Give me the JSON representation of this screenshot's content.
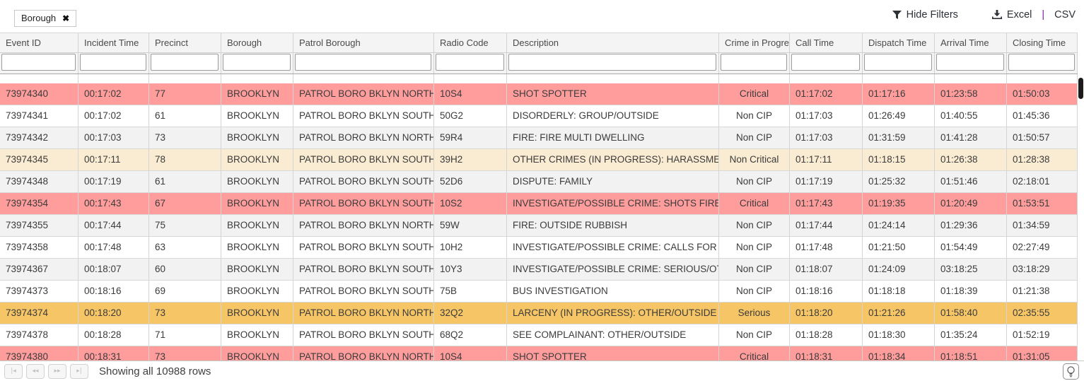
{
  "filter_chip": {
    "label": "Borough",
    "remove_icon": "✖"
  },
  "toolbar": {
    "hide_filters_label": "Hide Filters",
    "excel_label": "Excel",
    "separator": "|",
    "csv_label": "CSV"
  },
  "table": {
    "columns": [
      "Event ID",
      "Incident Time",
      "Precinct",
      "Borough",
      "Patrol Borough",
      "Radio Code",
      "Description",
      "Crime in Progre...",
      "Call Time",
      "Dispatch Time",
      "Arrival Time",
      "Closing Time"
    ],
    "rows": [
      {
        "bg": "critical",
        "cells": [
          "73974340",
          "00:17:02",
          "77",
          "BROOKLYN",
          "PATROL BORO BKLYN NORTH",
          "10S4",
          "SHOT SPOTTER",
          "Critical",
          "01:17:02",
          "01:17:16",
          "01:23:58",
          "01:50:03"
        ]
      },
      {
        "bg": "white",
        "cells": [
          "73974341",
          "00:17:02",
          "61",
          "BROOKLYN",
          "PATROL BORO BKLYN SOUTH",
          "50G2",
          "DISORDERLY: GROUP/OUTSIDE",
          "Non CIP",
          "01:17:03",
          "01:26:49",
          "01:40:55",
          "01:45:36"
        ]
      },
      {
        "bg": "alt",
        "cells": [
          "73974342",
          "00:17:03",
          "73",
          "BROOKLYN",
          "PATROL BORO BKLYN NORTH",
          "59R4",
          "FIRE: FIRE MULTI DWELLING",
          "Non CIP",
          "01:17:03",
          "01:31:59",
          "01:41:28",
          "01:50:57"
        ]
      },
      {
        "bg": "non_critical",
        "cells": [
          "73974345",
          "00:17:11",
          "78",
          "BROOKLYN",
          "PATROL BORO BKLYN SOUTH",
          "39H2",
          "OTHER CRIMES (IN PROGRESS): HARASSMENT/OUT",
          "Non Critical",
          "01:17:11",
          "01:18:15",
          "01:26:38",
          "01:28:38"
        ]
      },
      {
        "bg": "alt",
        "cells": [
          "73974348",
          "00:17:19",
          "61",
          "BROOKLYN",
          "PATROL BORO BKLYN SOUTH",
          "52D6",
          "DISPUTE: FAMILY",
          "Non CIP",
          "01:17:19",
          "01:25:32",
          "01:51:46",
          "02:18:01"
        ]
      },
      {
        "bg": "critical",
        "cells": [
          "73974354",
          "00:17:43",
          "67",
          "BROOKLYN",
          "PATROL BORO BKLYN SOUTH",
          "10S2",
          "INVESTIGATE/POSSIBLE CRIME: SHOTS FIRED/OUTS",
          "Critical",
          "01:17:43",
          "01:19:35",
          "01:20:49",
          "01:53:51"
        ]
      },
      {
        "bg": "alt",
        "cells": [
          "73974355",
          "00:17:44",
          "75",
          "BROOKLYN",
          "PATROL BORO BKLYN NORTH",
          "59W",
          "FIRE: OUTSIDE RUBBISH",
          "Non CIP",
          "01:17:44",
          "01:24:14",
          "01:29:36",
          "01:34:59"
        ]
      },
      {
        "bg": "white",
        "cells": [
          "73974358",
          "00:17:48",
          "63",
          "BROOKLYN",
          "PATROL BORO BKLYN SOUTH",
          "10H2",
          "INVESTIGATE/POSSIBLE CRIME: CALLS FOR HELP/OU",
          "Non CIP",
          "01:17:48",
          "01:21:50",
          "01:54:49",
          "02:27:49"
        ]
      },
      {
        "bg": "alt",
        "cells": [
          "73974367",
          "00:18:07",
          "60",
          "BROOKLYN",
          "PATROL BORO BKLYN SOUTH",
          "10Y3",
          "INVESTIGATE/POSSIBLE CRIME: SERIOUS/OTHER",
          "Non CIP",
          "01:18:07",
          "01:24:09",
          "03:18:25",
          "03:18:29"
        ]
      },
      {
        "bg": "white",
        "cells": [
          "73974373",
          "00:18:16",
          "69",
          "BROOKLYN",
          "PATROL BORO BKLYN SOUTH",
          "75B",
          "BUS INVESTIGATION",
          "Non CIP",
          "01:18:16",
          "01:18:18",
          "01:18:39",
          "01:21:38"
        ]
      },
      {
        "bg": "serious",
        "cells": [
          "73974374",
          "00:18:20",
          "73",
          "BROOKLYN",
          "PATROL BORO BKLYN NORTH",
          "32Q2",
          "LARCENY (IN PROGRESS): OTHER/OUTSIDE",
          "Serious",
          "01:18:20",
          "01:21:26",
          "01:58:40",
          "02:35:55"
        ]
      },
      {
        "bg": "white",
        "cells": [
          "73974378",
          "00:18:28",
          "71",
          "BROOKLYN",
          "PATROL BORO BKLYN SOUTH",
          "68Q2",
          "SEE COMPLAINANT: OTHER/OUTSIDE",
          "Non CIP",
          "01:18:28",
          "01:18:30",
          "01:35:24",
          "01:52:19"
        ]
      },
      {
        "bg": "critical",
        "cells": [
          "73974380",
          "00:18:31",
          "73",
          "BROOKLYN",
          "PATROL BORO BKLYN NORTH",
          "10S4",
          "SHOT SPOTTER",
          "Critical",
          "01:18:31",
          "01:18:34",
          "01:18:51",
          "01:31:05"
        ]
      }
    ]
  },
  "footer": {
    "status_text": "Showing all 10988 rows",
    "pagination_glyphs": [
      "|◂",
      "◂◂",
      "▸▸",
      "▸|"
    ]
  },
  "theme": {
    "critical_row": "#ff9d9d",
    "serious_row": "#f6c566",
    "non_critical_row": "#faecd2",
    "alt_row": "#f2f2f2",
    "white_row": "#ffffff",
    "export_separator_color": "#7b1fa2",
    "scrollbar_thumb": "#1b1b1b"
  }
}
